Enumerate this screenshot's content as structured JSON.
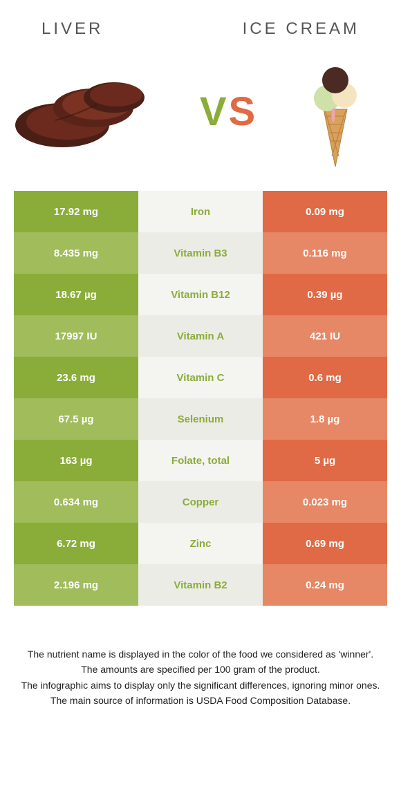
{
  "header": {
    "left": "Liver",
    "right": "Ice cream"
  },
  "vs": {
    "v": "V",
    "s": "S"
  },
  "colors": {
    "left_strong": "#8aad3a",
    "left_weak": "#a0bc5b",
    "mid_bg_a": "#f4f4f0",
    "mid_bg_b": "#ecece6",
    "right_strong": "#e06a45",
    "right_weak": "#e68766",
    "nutrient_left_text": "#8aad3a",
    "nutrient_right_text": "#e06a45"
  },
  "table": {
    "rows": [
      {
        "left": "17.92 mg",
        "label": "Iron",
        "right": "0.09 mg",
        "winner": "left"
      },
      {
        "left": "8.435 mg",
        "label": "Vitamin B3",
        "right": "0.116 mg",
        "winner": "left"
      },
      {
        "left": "18.67 µg",
        "label": "Vitamin B12",
        "right": "0.39 µg",
        "winner": "left"
      },
      {
        "left": "17997 IU",
        "label": "Vitamin A",
        "right": "421 IU",
        "winner": "left"
      },
      {
        "left": "23.6 mg",
        "label": "Vitamin C",
        "right": "0.6 mg",
        "winner": "left"
      },
      {
        "left": "67.5 µg",
        "label": "Selenium",
        "right": "1.8 µg",
        "winner": "left"
      },
      {
        "left": "163 µg",
        "label": "Folate, total",
        "right": "5 µg",
        "winner": "left"
      },
      {
        "left": "0.634 mg",
        "label": "Copper",
        "right": "0.023 mg",
        "winner": "left"
      },
      {
        "left": "6.72 mg",
        "label": "Zinc",
        "right": "0.69 mg",
        "winner": "left"
      },
      {
        "left": "2.196 mg",
        "label": "Vitamin B2",
        "right": "0.24 mg",
        "winner": "left"
      }
    ]
  },
  "footer": {
    "lines": [
      "The nutrient name is displayed in the color of the food we considered as 'winner'.",
      "The amounts are specified per 100 gram of the product.",
      "The infographic aims to display only the significant differences, ignoring minor ones.",
      "The main source of information is USDA Food Composition Database."
    ]
  }
}
